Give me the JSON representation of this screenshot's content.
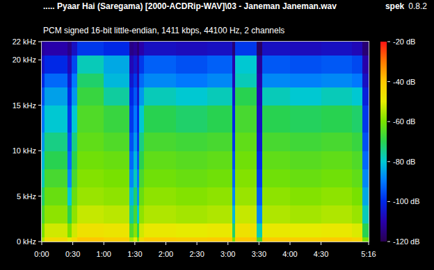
{
  "chart_data": {
    "type": "heatmap",
    "title": "..... Pyaar Hai (Saregama) [2000-ACDRip-WAV]\\03 - Janeman Janeman.wav",
    "subtitle": "PCM signed 16-bit little-endian, 1411 kbps, 44100 Hz, 2 channels",
    "annotations": [
      "spek",
      "0.8.2"
    ],
    "x_edges": [
      0,
      3,
      25,
      29,
      34,
      60,
      85,
      89,
      92,
      94,
      99,
      130,
      160,
      184,
      187,
      208,
      213,
      240,
      270,
      300,
      310,
      316
    ],
    "y_edges": [
      0,
      0.5,
      2,
      4,
      6,
      8,
      10,
      12,
      15,
      17,
      18.5,
      20.5,
      22
    ],
    "values": [
      [
        -55,
        -60,
        -66,
        -72,
        -78,
        -82,
        -86,
        -90,
        -95,
        -100,
        -105,
        -112
      ],
      [
        -45,
        -52,
        -58,
        -62,
        -66,
        -70,
        -74,
        -80,
        -85,
        -92,
        -100,
        -110
      ],
      [
        -50,
        -60,
        -70,
        -80,
        -88,
        -92,
        -95,
        -98,
        -100,
        -104,
        -108,
        -114
      ],
      [
        -45,
        -52,
        -58,
        -62,
        -66,
        -70,
        -74,
        -80,
        -86,
        -90,
        -96,
        -106
      ],
      [
        -40,
        -47,
        -53,
        -57,
        -59,
        -61,
        -63,
        -65,
        -68,
        -72,
        -78,
        -98
      ],
      [
        -42,
        -48,
        -54,
        -58,
        -60,
        -62,
        -65,
        -68,
        -76,
        -82,
        -84,
        -100
      ],
      [
        -55,
        -65,
        -75,
        -82,
        -88,
        -92,
        -95,
        -98,
        -100,
        -104,
        -108,
        -114
      ],
      [
        -50,
        -58,
        -66,
        -72,
        -78,
        -82,
        -86,
        -90,
        -94,
        -98,
        -104,
        -112
      ],
      [
        -60,
        -70,
        -80,
        -86,
        -90,
        -94,
        -98,
        -100,
        -104,
        -108,
        -110,
        -116
      ],
      [
        -45,
        -52,
        -58,
        -62,
        -66,
        -70,
        -74,
        -80,
        -86,
        -92,
        -98,
        -110
      ],
      [
        -41,
        -49,
        -55,
        -58,
        -61,
        -63,
        -66,
        -70,
        -78,
        -88,
        -93,
        -106
      ],
      [
        -42,
        -50,
        -56,
        -59,
        -62,
        -64,
        -67,
        -72,
        -80,
        -90,
        -95,
        -107
      ],
      [
        -41,
        -49,
        -55,
        -58,
        -61,
        -63,
        -66,
        -70,
        -78,
        -88,
        -93,
        -106
      ],
      [
        -60,
        -72,
        -82,
        -88,
        -92,
        -95,
        -98,
        -100,
        -104,
        -108,
        -110,
        -116
      ],
      [
        -40,
        -47,
        -53,
        -57,
        -59,
        -61,
        -63,
        -66,
        -70,
        -78,
        -80,
        -98
      ],
      [
        -65,
        -78,
        -88,
        -94,
        -98,
        -100,
        -104,
        -106,
        -108,
        -110,
        -112,
        -118
      ],
      [
        -41,
        -49,
        -55,
        -58,
        -61,
        -63,
        -66,
        -70,
        -78,
        -88,
        -94,
        -106
      ],
      [
        -42,
        -50,
        -56,
        -59,
        -62,
        -64,
        -67,
        -71,
        -80,
        -89,
        -95,
        -107
      ],
      [
        -41,
        -49,
        -55,
        -58,
        -61,
        -63,
        -66,
        -70,
        -78,
        -88,
        -94,
        -106
      ],
      [
        -43,
        -51,
        -57,
        -60,
        -63,
        -65,
        -68,
        -72,
        -80,
        -90,
        -96,
        -108
      ],
      [
        -60,
        -70,
        -78,
        -84,
        -88,
        -92,
        -95,
        -98,
        -102,
        -106,
        -110,
        -116
      ]
    ],
    "xlim": [
      0,
      316
    ],
    "ylim": [
      0,
      22
    ],
    "xticks": [
      {
        "value": 0,
        "label": "0:00"
      },
      {
        "value": 30,
        "label": "0:30"
      },
      {
        "value": 60,
        "label": "1:00"
      },
      {
        "value": 90,
        "label": "1:30"
      },
      {
        "value": 120,
        "label": "2:00"
      },
      {
        "value": 150,
        "label": "2:30"
      },
      {
        "value": 180,
        "label": "3:00"
      },
      {
        "value": 210,
        "label": "3:30"
      },
      {
        "value": 240,
        "label": "4:00"
      },
      {
        "value": 270,
        "label": "4:30"
      },
      {
        "value": 316,
        "label": "5:16"
      }
    ],
    "yticks": [
      {
        "value": 0,
        "label": "0 kHz"
      },
      {
        "value": 5,
        "label": "5 kHz"
      },
      {
        "value": 10,
        "label": "10 kHz"
      },
      {
        "value": 15,
        "label": "15 kHz"
      },
      {
        "value": 20,
        "label": "20 kHz"
      },
      {
        "value": 22,
        "label": "22 kHz"
      }
    ],
    "color_range": [
      -120,
      -20
    ],
    "color_ticks": [
      {
        "value": -20,
        "label": "-20 dB"
      },
      {
        "value": -40,
        "label": "-40 dB"
      },
      {
        "value": -60,
        "label": "-60 dB"
      },
      {
        "value": -80,
        "label": "-80 dB"
      },
      {
        "value": -100,
        "label": "-100 dB"
      },
      {
        "value": -120,
        "label": "-120 dB"
      }
    ]
  }
}
